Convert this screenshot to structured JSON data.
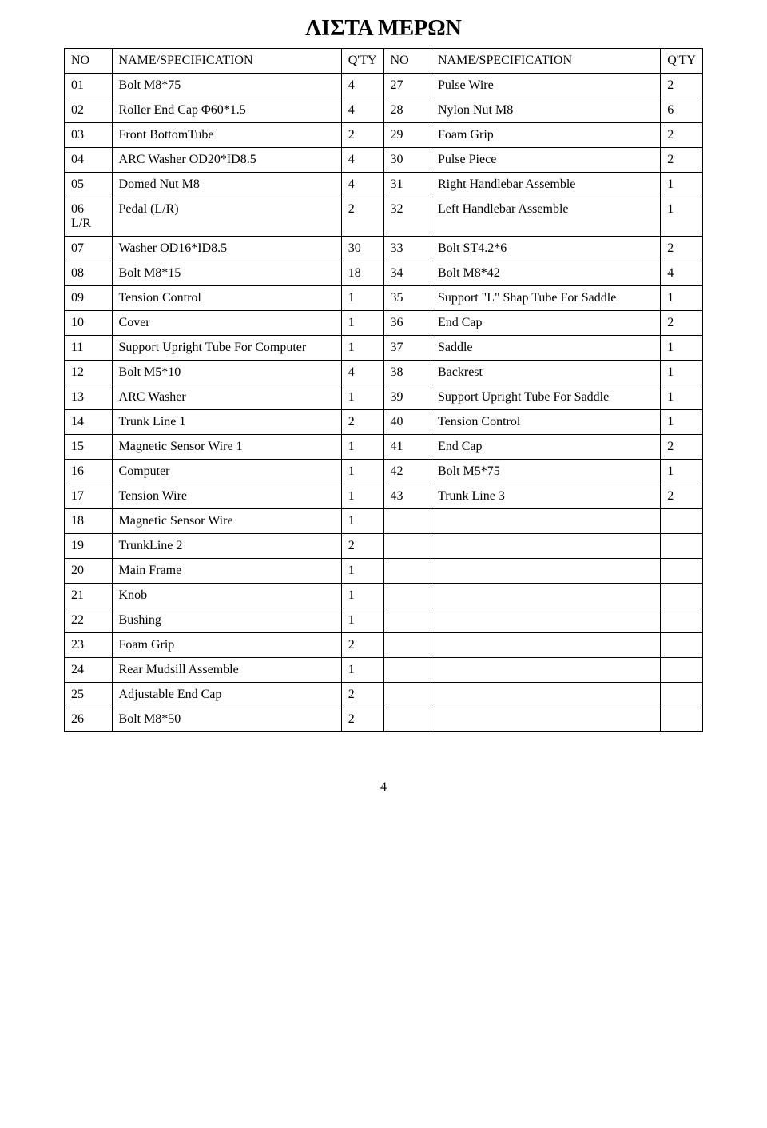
{
  "title": "ΛΙΣΤΑ ΜΕΡΩΝ",
  "headers": {
    "no1": "NO",
    "name1": "NAME/SPECIFICATION",
    "qty1": "Q'TY",
    "no2": "NO",
    "name2": "NAME/SPECIFICATION",
    "qty2": "Q'TY"
  },
  "rows": [
    {
      "no1": "01",
      "name1": "Bolt   M8*75",
      "qty1": "4",
      "no2": "27",
      "name2": "Pulse Wire",
      "qty2": "2"
    },
    {
      "no1": "02",
      "name1": "Roller End Cap  Φ60*1.5",
      "qty1": "4",
      "no2": "28",
      "name2": "Nylon Nut   M8",
      "qty2": "6"
    },
    {
      "no1": "03",
      "name1": "Front BottomTube",
      "qty1": "2",
      "no2": "29",
      "name2": "Foam Grip",
      "qty2": "2"
    },
    {
      "no1": "04",
      "name1": "ARC Washer   OD20*ID8.5",
      "qty1": "4",
      "no2": "30",
      "name2": "Pulse Piece",
      "qty2": "2"
    },
    {
      "no1": "05",
      "name1": "Domed Nut   M8",
      "qty1": "4",
      "no2": "31",
      "name2": "Right Handlebar Assemble",
      "qty2": "1"
    },
    {
      "no1": "06 L/R",
      "name1": "Pedal (L/R)",
      "qty1": "2",
      "no2": "32",
      "name2": "Left Handlebar Assemble",
      "qty2": "1"
    },
    {
      "no1": "07",
      "name1": "Washer   OD16*ID8.5",
      "qty1": "30",
      "no2": "33",
      "name2": "Bolt   ST4.2*6",
      "qty2": "2"
    },
    {
      "no1": "08",
      "name1": "Bolt   M8*15",
      "qty1": "18",
      "no2": "34",
      "name2": "Bolt   M8*42",
      "qty2": "4"
    },
    {
      "no1": "09",
      "name1": "Tension Control",
      "qty1": "1",
      "no2": "35",
      "name2": "Support \"L\" Shap Tube For Saddle",
      "qty2": "1"
    },
    {
      "no1": "10",
      "name1": "Cover",
      "qty1": "1",
      "no2": "36",
      "name2": "End Cap",
      "qty2": "2"
    },
    {
      "no1": "11",
      "name1": "Support Upright Tube For Computer",
      "qty1": "1",
      "no2": "37",
      "name2": "Saddle",
      "qty2": "1"
    },
    {
      "no1": "12",
      "name1": "Bolt M5*10",
      "qty1": "4",
      "no2": "38",
      "name2": "Backrest",
      "qty2": "1"
    },
    {
      "no1": "13",
      "name1": "ARC Washer",
      "qty1": "1",
      "no2": "39",
      "name2": "Support Upright Tube For Saddle",
      "qty2": "1"
    },
    {
      "no1": "14",
      "name1": "Trunk Line 1",
      "qty1": "2",
      "no2": "40",
      "name2": "Tension Control",
      "qty2": "1"
    },
    {
      "no1": "15",
      "name1": "Magnetic Sensor Wire 1",
      "qty1": "1",
      "no2": "41",
      "name2": "End Cap",
      "qty2": "2"
    },
    {
      "no1": "16",
      "name1": "Computer",
      "qty1": "1",
      "no2": "42",
      "name2": "Bolt   M5*75",
      "qty2": "1"
    },
    {
      "no1": "17",
      "name1": "Tension Wire",
      "qty1": "1",
      "no2": "43",
      "name2": "Trunk Line 3",
      "qty2": "2"
    },
    {
      "no1": "18",
      "name1": "Magnetic Sensor Wire",
      "qty1": "1",
      "no2": "",
      "name2": "",
      "qty2": ""
    },
    {
      "no1": "19",
      "name1": "TrunkLine 2",
      "qty1": "2",
      "no2": "",
      "name2": "",
      "qty2": ""
    },
    {
      "no1": "20",
      "name1": "Main Frame",
      "qty1": "1",
      "no2": "",
      "name2": "",
      "qty2": ""
    },
    {
      "no1": "21",
      "name1": "Knob",
      "qty1": "1",
      "no2": "",
      "name2": "",
      "qty2": ""
    },
    {
      "no1": "22",
      "name1": "Bushing",
      "qty1": "1",
      "no2": "",
      "name2": "",
      "qty2": ""
    },
    {
      "no1": "23",
      "name1": "Foam Grip",
      "qty1": "2",
      "no2": "",
      "name2": "",
      "qty2": ""
    },
    {
      "no1": "24",
      "name1": "Rear Mudsill Assemble",
      "qty1": "1",
      "no2": "",
      "name2": "",
      "qty2": ""
    },
    {
      "no1": "25",
      "name1": "Adjustable End Cap",
      "qty1": "2",
      "no2": "",
      "name2": "",
      "qty2": ""
    },
    {
      "no1": "26",
      "name1": "Bolt M8*50",
      "qty1": "2",
      "no2": "",
      "name2": "",
      "qty2": ""
    }
  ],
  "pageNumber": "4"
}
